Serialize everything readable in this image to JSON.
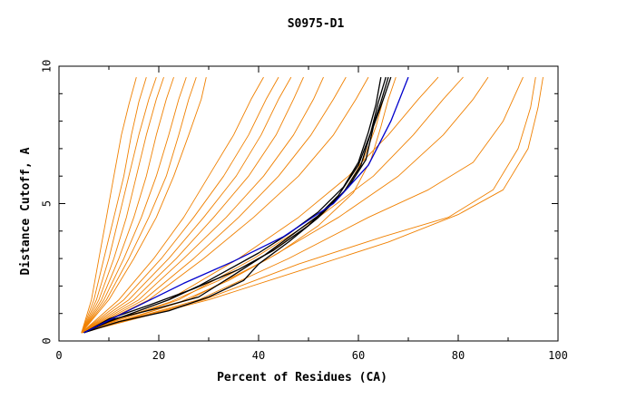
{
  "chart_data": {
    "type": "line",
    "title": "S0975-D1",
    "xlabel": "Percent of Residues (CA)",
    "ylabel": "Distance Cutoff, A",
    "xlim": [
      0,
      100
    ],
    "ylim": [
      0,
      10
    ],
    "x_ticks": [
      0,
      20,
      40,
      60,
      80,
      100
    ],
    "y_ticks": [
      0,
      5,
      10
    ],
    "x_tick_labels": [
      "0",
      "20",
      "40",
      "60",
      "80",
      "100"
    ],
    "y_tick_labels": [
      "0",
      "5",
      "10"
    ],
    "grid": false,
    "legend": "none",
    "colors": {
      "orange": "#f08000",
      "black": "#000000",
      "blue": "#0000cc"
    },
    "series": [
      {
        "color": "orange",
        "points": [
          [
            4.5,
            0.3
          ],
          [
            6.5,
            1.5
          ],
          [
            8,
            3
          ],
          [
            9.5,
            4.5
          ],
          [
            11,
            6
          ],
          [
            12.5,
            7.5
          ],
          [
            14,
            8.6
          ],
          [
            15.5,
            9.6
          ]
        ]
      },
      {
        "color": "orange",
        "points": [
          [
            4.5,
            0.3
          ],
          [
            7,
            1.5
          ],
          [
            9,
            3
          ],
          [
            11,
            4.5
          ],
          [
            13,
            6
          ],
          [
            14.5,
            7.5
          ],
          [
            16,
            8.7
          ],
          [
            17.5,
            9.6
          ]
        ]
      },
      {
        "color": "orange",
        "points": [
          [
            4.5,
            0.3
          ],
          [
            7.5,
            1.5
          ],
          [
            10,
            3
          ],
          [
            12,
            4.5
          ],
          [
            14,
            6
          ],
          [
            16,
            7.5
          ],
          [
            18,
            8.8
          ],
          [
            19.5,
            9.6
          ]
        ]
      },
      {
        "color": "orange",
        "points": [
          [
            4.5,
            0.3
          ],
          [
            8,
            1.5
          ],
          [
            11,
            3
          ],
          [
            13.5,
            4.5
          ],
          [
            15.5,
            6
          ],
          [
            17.5,
            7.5
          ],
          [
            19.5,
            8.8
          ],
          [
            21,
            9.6
          ]
        ]
      },
      {
        "color": "orange",
        "points": [
          [
            4.5,
            0.3
          ],
          [
            8.5,
            1.5
          ],
          [
            12,
            3
          ],
          [
            15,
            4.5
          ],
          [
            17.5,
            6
          ],
          [
            19.5,
            7.5
          ],
          [
            21.5,
            8.8
          ],
          [
            23,
            9.6
          ]
        ]
      },
      {
        "color": "orange",
        "points": [
          [
            4.5,
            0.3
          ],
          [
            9,
            1.5
          ],
          [
            13,
            3
          ],
          [
            16.5,
            4.5
          ],
          [
            19.5,
            6
          ],
          [
            22,
            7.5
          ],
          [
            24,
            8.8
          ],
          [
            25.5,
            9.6
          ]
        ]
      },
      {
        "color": "orange",
        "points": [
          [
            4.5,
            0.3
          ],
          [
            9.5,
            1.5
          ],
          [
            14,
            3
          ],
          [
            18,
            4.5
          ],
          [
            21.5,
            6
          ],
          [
            24,
            7.5
          ],
          [
            26,
            8.8
          ],
          [
            27.5,
            9.6
          ]
        ]
      },
      {
        "color": "orange",
        "points": [
          [
            4.5,
            0.3
          ],
          [
            10,
            1.5
          ],
          [
            15,
            3
          ],
          [
            19.5,
            4.5
          ],
          [
            23,
            6
          ],
          [
            26,
            7.5
          ],
          [
            28.5,
            8.8
          ],
          [
            29.5,
            9.6
          ]
        ]
      },
      {
        "color": "orange",
        "points": [
          [
            4.5,
            0.3
          ],
          [
            12,
            1.5
          ],
          [
            19,
            3
          ],
          [
            25,
            4.5
          ],
          [
            30,
            6
          ],
          [
            35,
            7.5
          ],
          [
            38.5,
            8.8
          ],
          [
            41,
            9.6
          ]
        ]
      },
      {
        "color": "orange",
        "points": [
          [
            4.5,
            0.3
          ],
          [
            13,
            1.5
          ],
          [
            20.5,
            3
          ],
          [
            27,
            4.5
          ],
          [
            33,
            6
          ],
          [
            38,
            7.5
          ],
          [
            41.5,
            8.8
          ],
          [
            44,
            9.6
          ]
        ]
      },
      {
        "color": "orange",
        "points": [
          [
            4.5,
            0.3
          ],
          [
            14,
            1.5
          ],
          [
            22,
            3
          ],
          [
            29,
            4.5
          ],
          [
            35.5,
            6
          ],
          [
            40.5,
            7.5
          ],
          [
            44,
            8.8
          ],
          [
            46.5,
            9.6
          ]
        ]
      },
      {
        "color": "orange",
        "points": [
          [
            4.5,
            0.3
          ],
          [
            15,
            1.5
          ],
          [
            23.5,
            3
          ],
          [
            31,
            4.5
          ],
          [
            38,
            6
          ],
          [
            43.5,
            7.5
          ],
          [
            47,
            8.8
          ],
          [
            49,
            9.6
          ]
        ]
      },
      {
        "color": "orange",
        "points": [
          [
            4.5,
            0.3
          ],
          [
            16,
            1.5
          ],
          [
            25,
            3
          ],
          [
            33.5,
            4.5
          ],
          [
            41,
            6
          ],
          [
            47,
            7.5
          ],
          [
            51,
            8.8
          ],
          [
            53,
            9.6
          ]
        ]
      },
      {
        "color": "orange",
        "points": [
          [
            4.5,
            0.3
          ],
          [
            17,
            1.5
          ],
          [
            27,
            3
          ],
          [
            36,
            4.5
          ],
          [
            44,
            6
          ],
          [
            50.5,
            7.5
          ],
          [
            55,
            8.8
          ],
          [
            57.5,
            9.6
          ]
        ]
      },
      {
        "color": "orange",
        "points": [
          [
            4.5,
            0.3
          ],
          [
            18,
            1.5
          ],
          [
            29,
            3
          ],
          [
            39,
            4.5
          ],
          [
            48,
            6
          ],
          [
            55,
            7.5
          ],
          [
            59.5,
            8.8
          ],
          [
            62,
            9.6
          ]
        ]
      },
      {
        "color": "orange",
        "points": [
          [
            4.5,
            0.3
          ],
          [
            22,
            1.5
          ],
          [
            36,
            3
          ],
          [
            48,
            4.5
          ],
          [
            58,
            6
          ],
          [
            66,
            7.5
          ],
          [
            72,
            8.8
          ],
          [
            76,
            9.6
          ]
        ]
      },
      {
        "color": "orange",
        "points": [
          [
            4.5,
            0.3
          ],
          [
            24,
            1.5
          ],
          [
            39,
            3
          ],
          [
            52,
            4.5
          ],
          [
            63,
            6
          ],
          [
            71,
            7.5
          ],
          [
            77,
            8.8
          ],
          [
            81,
            9.6
          ]
        ]
      },
      {
        "color": "orange",
        "points": [
          [
            4.5,
            0.3
          ],
          [
            26,
            1.5
          ],
          [
            42,
            3
          ],
          [
            56,
            4.5
          ],
          [
            68,
            6
          ],
          [
            77,
            7.5
          ],
          [
            83,
            8.8
          ],
          [
            86,
            9.6
          ]
        ]
      },
      {
        "color": "orange",
        "points": [
          [
            4.5,
            0.3
          ],
          [
            28,
            1.5
          ],
          [
            46,
            3
          ],
          [
            62,
            4.5
          ],
          [
            74,
            5.5
          ],
          [
            83,
            6.5
          ],
          [
            89,
            8
          ],
          [
            93,
            9.6
          ]
        ]
      },
      {
        "color": "orange",
        "points": [
          [
            4.5,
            0.3
          ],
          [
            29,
            1.5
          ],
          [
            48,
            2.8
          ],
          [
            65,
            3.8
          ],
          [
            78,
            4.5
          ],
          [
            87,
            5.5
          ],
          [
            92,
            7
          ],
          [
            94.5,
            8.5
          ],
          [
            95.5,
            9.6
          ]
        ]
      },
      {
        "color": "orange",
        "points": [
          [
            4.5,
            0.3
          ],
          [
            30,
            1.5
          ],
          [
            49,
            2.6
          ],
          [
            66,
            3.6
          ],
          [
            80,
            4.6
          ],
          [
            89,
            5.5
          ],
          [
            94,
            7
          ],
          [
            96,
            8.5
          ],
          [
            97,
            9.6
          ]
        ]
      },
      {
        "color": "orange",
        "points": [
          [
            5,
            0.3
          ],
          [
            12,
            0.8
          ],
          [
            22,
            1.4
          ],
          [
            32,
            2.2
          ],
          [
            42,
            3.2
          ],
          [
            50,
            4.2
          ],
          [
            57,
            5.4
          ],
          [
            61,
            6.6
          ],
          [
            63.5,
            7.8
          ],
          [
            65,
            8.8
          ],
          [
            66.5,
            9.6
          ]
        ]
      },
      {
        "color": "orange",
        "points": [
          [
            5,
            0.3
          ],
          [
            14,
            0.8
          ],
          [
            24,
            1.4
          ],
          [
            34,
            2.2
          ],
          [
            44,
            3.2
          ],
          [
            52,
            4.2
          ],
          [
            59,
            5.4
          ],
          [
            62.5,
            6.6
          ],
          [
            64.5,
            7.8
          ],
          [
            66,
            8.8
          ],
          [
            67.5,
            9.6
          ]
        ]
      },
      {
        "color": "black",
        "points": [
          [
            5,
            0.3
          ],
          [
            10,
            0.8
          ],
          [
            18,
            1.3
          ],
          [
            27,
            1.9
          ],
          [
            36,
            2.6
          ],
          [
            43,
            3.3
          ],
          [
            50,
            4.2
          ],
          [
            56,
            5.3
          ],
          [
            60,
            6.4
          ],
          [
            62.5,
            7.6
          ],
          [
            64.5,
            8.7
          ],
          [
            66,
            9.6
          ]
        ]
      },
      {
        "color": "black",
        "points": [
          [
            5,
            0.3
          ],
          [
            11,
            0.8
          ],
          [
            20,
            1.2
          ],
          [
            28,
            1.6
          ],
          [
            35,
            2.4
          ],
          [
            41,
            3.1
          ],
          [
            47,
            3.9
          ],
          [
            53,
            4.7
          ],
          [
            58,
            5.6
          ],
          [
            61.5,
            6.6
          ],
          [
            63,
            7.8
          ],
          [
            65,
            8.8
          ],
          [
            66.5,
            9.6
          ]
        ]
      },
      {
        "color": "black",
        "points": [
          [
            5,
            0.3
          ],
          [
            12,
            0.7
          ],
          [
            22,
            1.1
          ],
          [
            30,
            1.6
          ],
          [
            37,
            2.2
          ],
          [
            40,
            2.8
          ],
          [
            46,
            3.6
          ],
          [
            52,
            4.5
          ],
          [
            57,
            5.4
          ],
          [
            60.5,
            6.4
          ],
          [
            62.5,
            7.6
          ],
          [
            64,
            8.7
          ],
          [
            65.5,
            9.6
          ]
        ]
      },
      {
        "color": "black",
        "points": [
          [
            5,
            0.3
          ],
          [
            10,
            0.7
          ],
          [
            16,
            1.1
          ],
          [
            22,
            1.5
          ],
          [
            28,
            2
          ],
          [
            34,
            2.6
          ],
          [
            40,
            3.2
          ],
          [
            46,
            3.9
          ],
          [
            52,
            4.7
          ],
          [
            57,
            5.6
          ],
          [
            60,
            6.5
          ],
          [
            62,
            7.6
          ],
          [
            63.5,
            8.6
          ],
          [
            64.5,
            9.6
          ]
        ]
      },
      {
        "color": "blue",
        "points": [
          [
            5,
            0.3
          ],
          [
            15,
            1.2
          ],
          [
            25,
            2.1
          ],
          [
            35,
            2.9
          ],
          [
            45,
            3.8
          ],
          [
            55,
            5
          ],
          [
            62,
            6.4
          ],
          [
            66.5,
            8
          ],
          [
            70,
            9.6
          ]
        ]
      }
    ]
  }
}
